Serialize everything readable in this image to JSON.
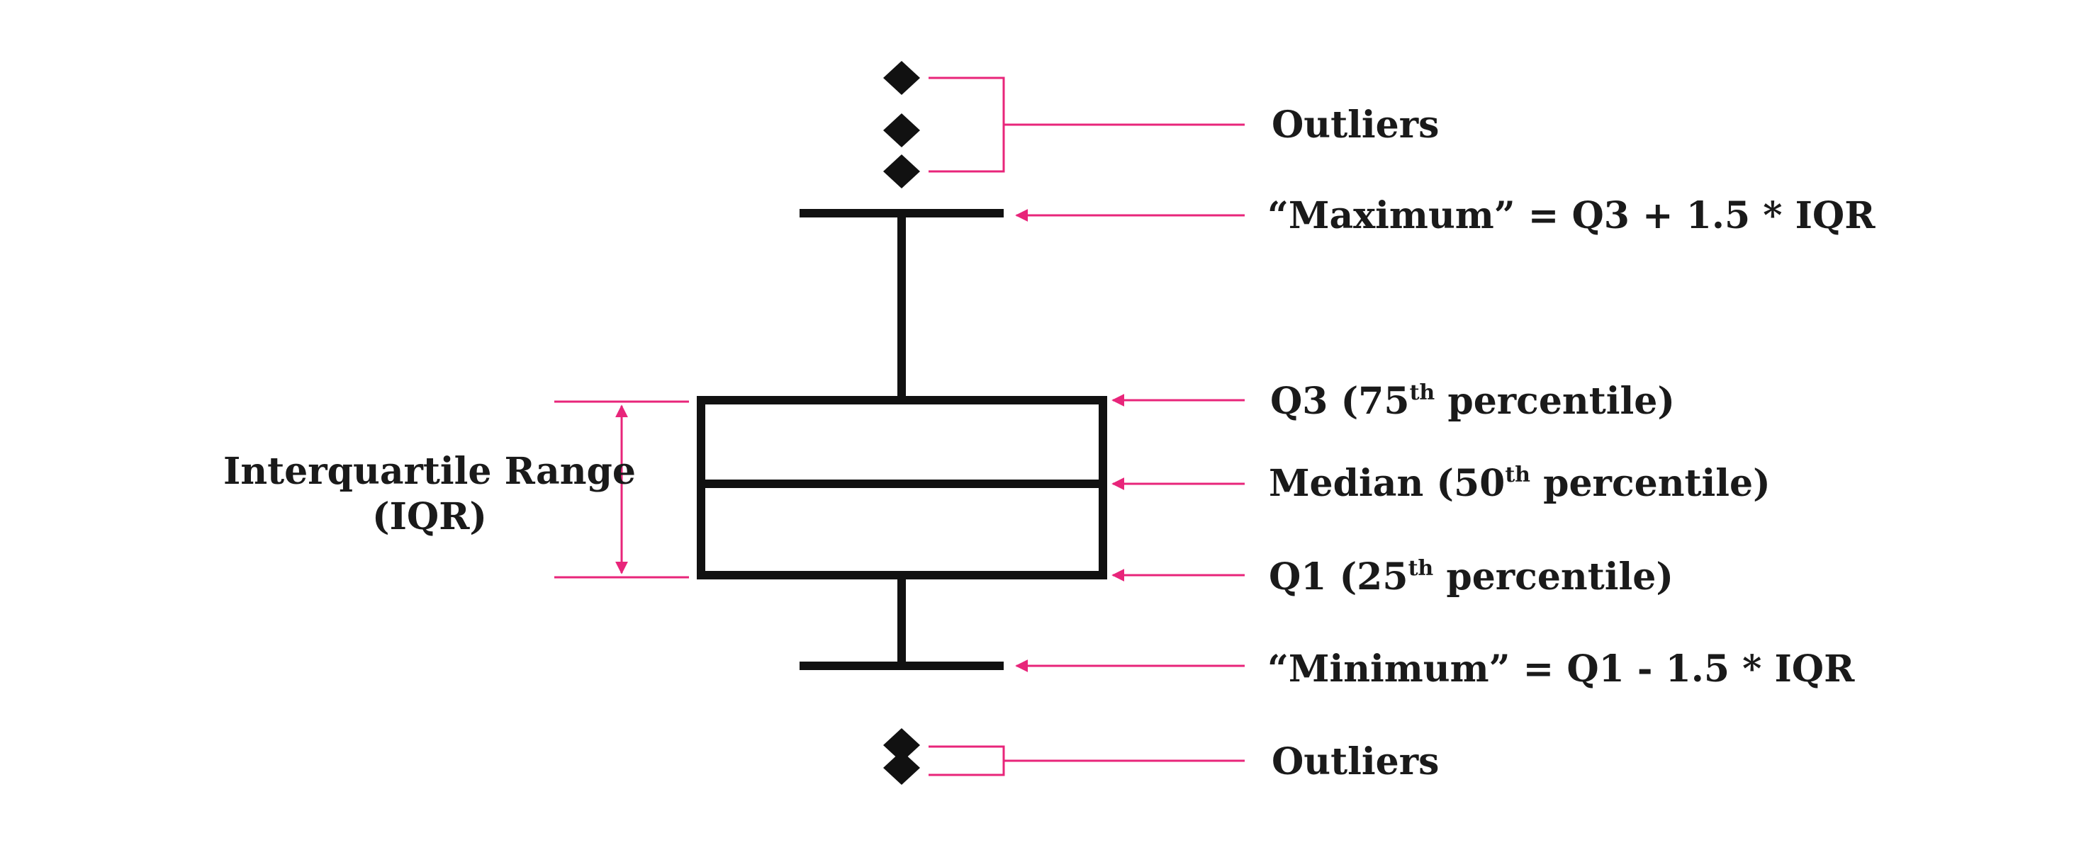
{
  "colors": {
    "ink": "#111111",
    "accent": "#e8257a",
    "text": "#1a1a1a"
  },
  "labels": {
    "outliers_top": "Outliers",
    "maximum": "“Maximum” = Q3 + 1.5 * IQR",
    "q3_prefix": "Q3 (75",
    "q3_sup": "th",
    "q3_suffix": " percentile)",
    "median_prefix": "Median (50",
    "median_sup": "th",
    "median_suffix": " percentile)",
    "q1_prefix": "Q1 (25",
    "q1_sup": "th",
    "q1_suffix": " percentile)",
    "minimum": "“Minimum” = Q1 - 1.5 * IQR",
    "outliers_bottom": "Outliers",
    "iqr_line1": "Interquartile Range",
    "iqr_line2": "(IQR)"
  },
  "markers": {
    "top_outlier_shape": "diamond",
    "top_outlier_count": 3,
    "bottom_outlier_shape": "diamond",
    "bottom_outlier_count": 2
  }
}
